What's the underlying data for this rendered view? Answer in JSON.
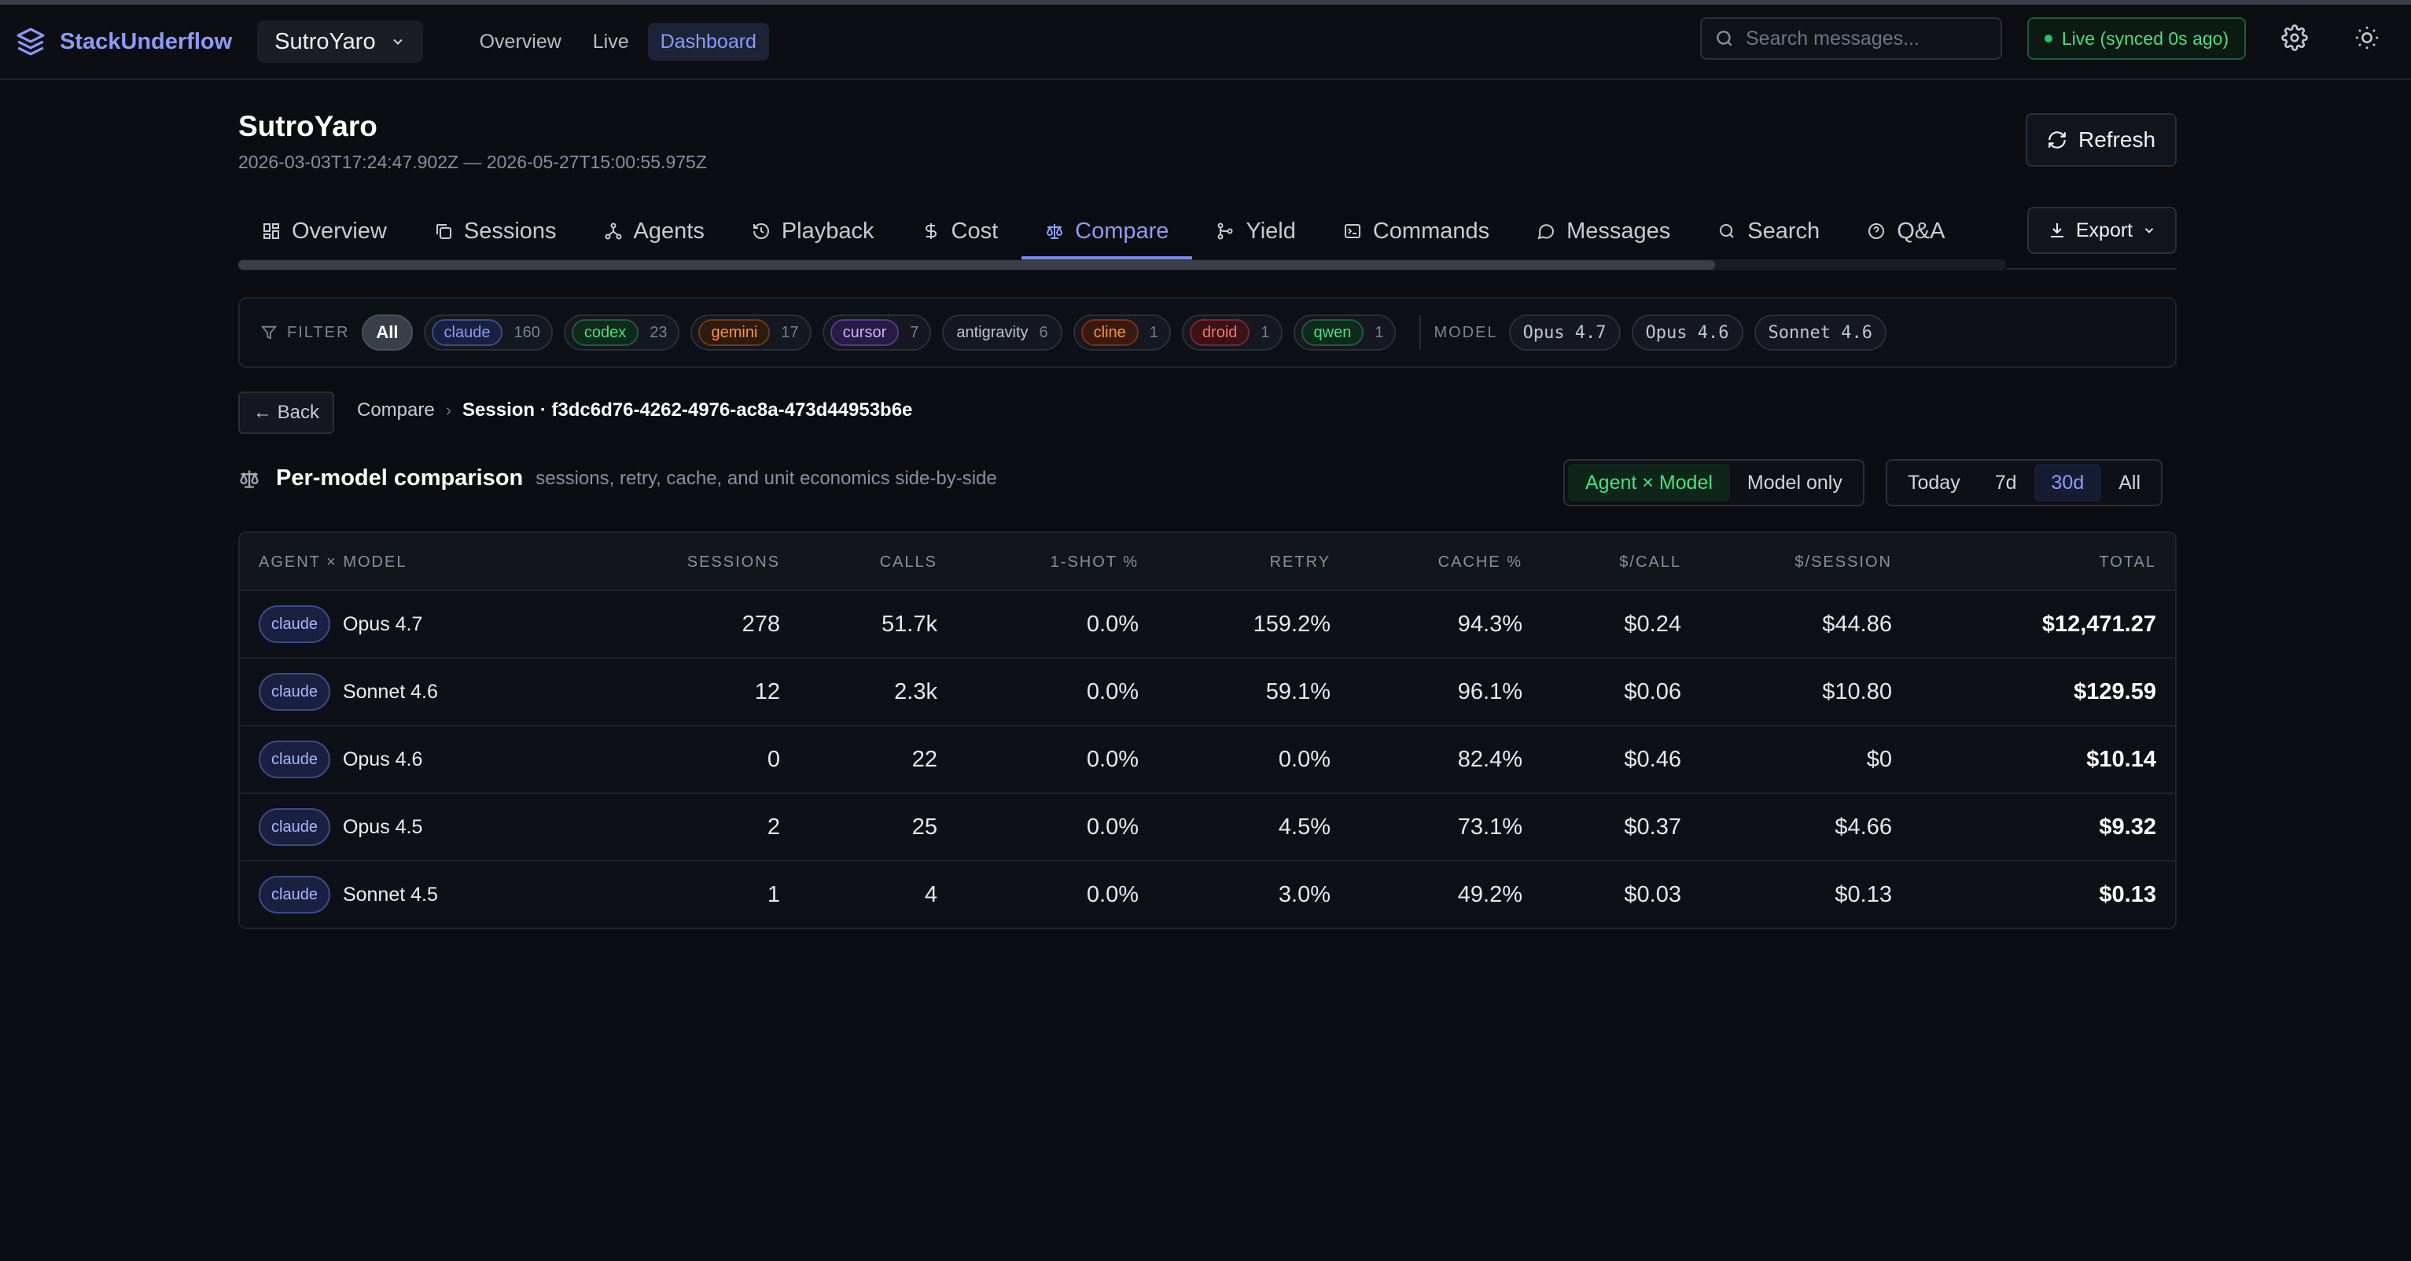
{
  "app": {
    "name": "StackUnderflow",
    "project": "SutroYaro",
    "nav": [
      "Overview",
      "Live",
      "Dashboard"
    ],
    "active_nav": "Dashboard",
    "search_placeholder": "Search messages...",
    "live_status": "Live (synced 0s ago)"
  },
  "page": {
    "title": "SutroYaro",
    "range": "2026-03-03T17:24:47.902Z — 2026-05-27T15:00:55.975Z",
    "refresh_label": "Refresh",
    "export_label": "Export"
  },
  "tabs": [
    {
      "label": "Overview",
      "icon": "grid-icon"
    },
    {
      "label": "Sessions",
      "icon": "copy-icon"
    },
    {
      "label": "Agents",
      "icon": "network-icon"
    },
    {
      "label": "Playback",
      "icon": "history-icon"
    },
    {
      "label": "Cost",
      "icon": "dollar-icon"
    },
    {
      "label": "Compare",
      "icon": "scale-icon"
    },
    {
      "label": "Yield",
      "icon": "git-merge-icon"
    },
    {
      "label": "Commands",
      "icon": "terminal-icon"
    },
    {
      "label": "Messages",
      "icon": "chat-icon"
    },
    {
      "label": "Search",
      "icon": "search-icon"
    },
    {
      "label": "Q&A",
      "icon": "help-icon"
    }
  ],
  "active_tab": "Compare",
  "filter": {
    "label": "FILTER",
    "all_label": "All",
    "agents": [
      {
        "name": "claude",
        "count": "160",
        "color": "#8b9cf7",
        "bg": "#1a2040",
        "border": "#3b4a8a"
      },
      {
        "name": "codex",
        "count": "23",
        "color": "#4ade80",
        "bg": "#0f2a1b",
        "border": "#1f5b3a"
      },
      {
        "name": "gemini",
        "count": "17",
        "color": "#fb923c",
        "bg": "#2e1a0e",
        "border": "#6b3a17"
      },
      {
        "name": "cursor",
        "count": "7",
        "color": "#c4b5fd",
        "bg": "#2a1a44",
        "border": "#553a8a"
      },
      {
        "name": "antigravity",
        "count": "6",
        "color": "#c0c4ce",
        "bg": "transparent",
        "border": "transparent"
      },
      {
        "name": "cline",
        "count": "1",
        "color": "#fb923c",
        "bg": "#3a1a0e",
        "border": "#7a2e17"
      },
      {
        "name": "droid",
        "count": "1",
        "color": "#f87171",
        "bg": "#3a1218",
        "border": "#7a2530"
      },
      {
        "name": "qwen",
        "count": "1",
        "color": "#4ade80",
        "bg": "#0f2a1b",
        "border": "#1f5b3a"
      }
    ],
    "model_label": "MODEL",
    "models": [
      "Opus 4.7",
      "Opus 4.6",
      "Sonnet 4.6"
    ]
  },
  "breadcrumb": {
    "back_label": "← Back",
    "parent": "Compare",
    "current": "Session · f3dc6d76-4262-4976-ac8a-473d44953b6e"
  },
  "comparison": {
    "title": "Per-model comparison",
    "subtitle": "sessions, retry, cache, and unit economics side-by-side",
    "view_options": [
      "Agent × Model",
      "Model only"
    ],
    "active_view": "Agent × Model",
    "range_options": [
      "Today",
      "7d",
      "30d",
      "All"
    ],
    "active_range": "30d",
    "columns": [
      "AGENT × MODEL",
      "SESSIONS",
      "CALLS",
      "1-SHOT %",
      "RETRY",
      "CACHE %",
      "$/CALL",
      "$/SESSION",
      "TOTAL"
    ],
    "rows": [
      {
        "agent": "claude",
        "model": "Opus 4.7",
        "sessions": "278",
        "calls": "51.7k",
        "oneshot": "0.0%",
        "retry": "159.2%",
        "cache": "94.3%",
        "per_call": "$0.24",
        "per_session": "$44.86",
        "total": "$12,471.27"
      },
      {
        "agent": "claude",
        "model": "Sonnet 4.6",
        "sessions": "12",
        "calls": "2.3k",
        "oneshot": "0.0%",
        "retry": "59.1%",
        "cache": "96.1%",
        "per_call": "$0.06",
        "per_session": "$10.80",
        "total": "$129.59"
      },
      {
        "agent": "claude",
        "model": "Opus 4.6",
        "sessions": "0",
        "calls": "22",
        "oneshot": "0.0%",
        "retry": "0.0%",
        "cache": "82.4%",
        "per_call": "$0.46",
        "per_session": "$0",
        "total": "$10.14"
      },
      {
        "agent": "claude",
        "model": "Opus 4.5",
        "sessions": "2",
        "calls": "25",
        "oneshot": "0.0%",
        "retry": "4.5%",
        "cache": "73.1%",
        "per_call": "$0.37",
        "per_session": "$4.66",
        "total": "$9.32"
      },
      {
        "agent": "claude",
        "model": "Sonnet 4.5",
        "sessions": "1",
        "calls": "4",
        "oneshot": "0.0%",
        "retry": "3.0%",
        "cache": "49.2%",
        "per_call": "$0.03",
        "per_session": "$0.13",
        "total": "$0.13"
      }
    ]
  }
}
